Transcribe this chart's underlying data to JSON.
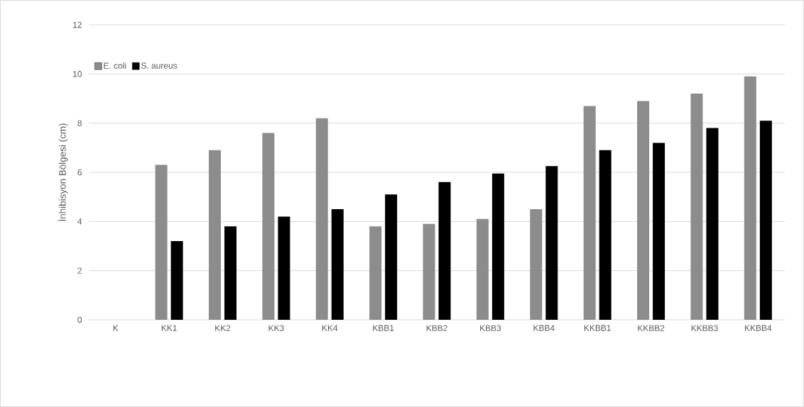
{
  "chart_data": {
    "type": "bar",
    "ylabel": "İnhibisyon Bölgesi (cm)",
    "categories": [
      "K",
      "KK1",
      "KK2",
      "KK3",
      "KK4",
      "KBB1",
      "KBB2",
      "KBB3",
      "KBB4",
      "KKBB1",
      "KKBB2",
      "KKBB3",
      "KKBB4"
    ],
    "series": [
      {
        "name": "E. coli",
        "color": "#8c8c8c",
        "values": [
          0,
          6.3,
          6.9,
          7.6,
          8.2,
          3.8,
          3.9,
          4.1,
          4.5,
          8.7,
          8.9,
          9.2,
          9.9
        ]
      },
      {
        "name": "S. aureus",
        "color": "#000000",
        "values": [
          0,
          3.2,
          3.8,
          4.2,
          4.5,
          5.1,
          5.6,
          5.95,
          6.25,
          6.9,
          7.2,
          7.8,
          8.1
        ]
      }
    ],
    "ylim": [
      0,
      12
    ],
    "yticks": [
      0,
      2,
      4,
      6,
      8,
      10,
      12
    ],
    "grid": "y",
    "legend": "top left"
  }
}
